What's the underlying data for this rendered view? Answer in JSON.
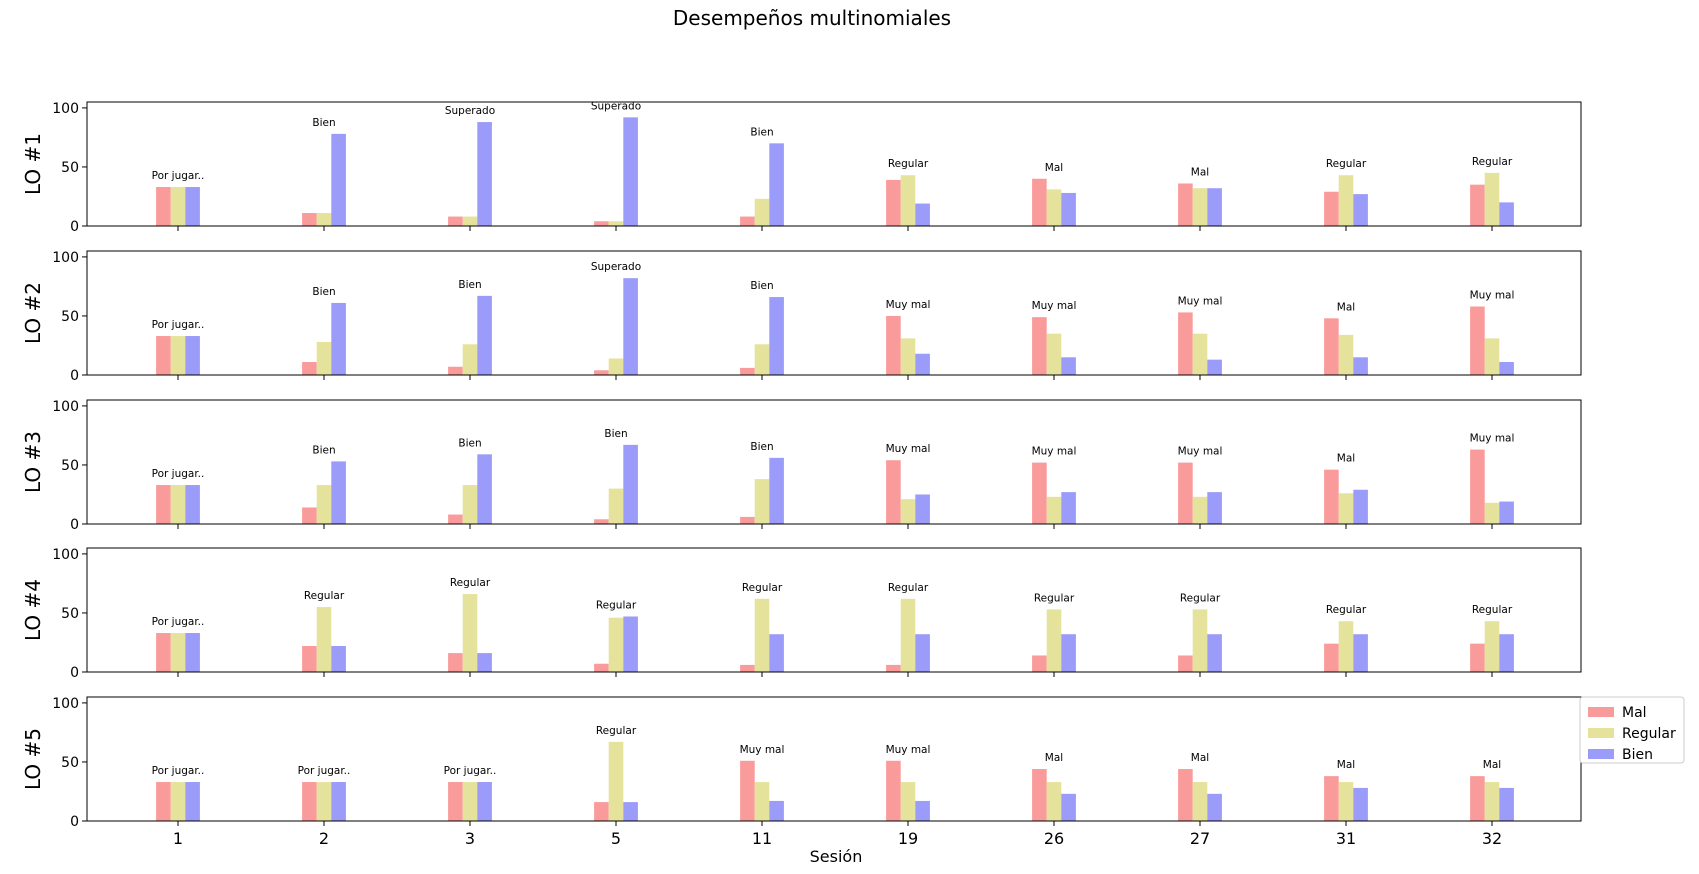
{
  "colors": {
    "Mal": "#f99b9b",
    "Regular": "#e5e39b",
    "Bien": "#9b9bf9"
  },
  "chart_data": {
    "type": "bar",
    "title": "Desempeños multinomiales",
    "xlabel": "Sesión",
    "categories": [
      "1",
      "2",
      "3",
      "5",
      "11",
      "19",
      "26",
      "27",
      "31",
      "32"
    ],
    "ylim": [
      0,
      105
    ],
    "yticks": [
      0,
      50,
      100
    ],
    "legend": {
      "placement": "right",
      "entries": [
        "Mal",
        "Regular",
        "Bien"
      ]
    },
    "grid": false,
    "subplots": [
      {
        "ylabel": "LO #1",
        "annotations": [
          "Por jugar..",
          "Bien",
          "Superado",
          "Superado",
          "Bien",
          "Regular",
          "Mal",
          "Mal",
          "Regular",
          "Regular"
        ],
        "series": [
          {
            "name": "Mal",
            "values": [
              33,
              11,
              8,
              4,
              8,
              39,
              40,
              36,
              29,
              35
            ]
          },
          {
            "name": "Regular",
            "values": [
              33,
              11,
              8,
              4,
              23,
              43,
              31,
              32,
              43,
              45
            ]
          },
          {
            "name": "Bien",
            "values": [
              33,
              78,
              88,
              92,
              70,
              19,
              28,
              32,
              27,
              20
            ]
          }
        ]
      },
      {
        "ylabel": "LO #2",
        "annotations": [
          "Por jugar..",
          "Bien",
          "Bien",
          "Superado",
          "Bien",
          "Muy mal",
          "Muy mal",
          "Muy mal",
          "Mal",
          "Muy mal"
        ],
        "series": [
          {
            "name": "Mal",
            "values": [
              33,
              11,
              7,
              4,
              6,
              50,
              49,
              53,
              48,
              58
            ]
          },
          {
            "name": "Regular",
            "values": [
              33,
              28,
              26,
              14,
              26,
              31,
              35,
              35,
              34,
              31
            ]
          },
          {
            "name": "Bien",
            "values": [
              33,
              61,
              67,
              82,
              66,
              18,
              15,
              13,
              15,
              11
            ]
          }
        ]
      },
      {
        "ylabel": "LO #3",
        "annotations": [
          "Por jugar..",
          "Bien",
          "Bien",
          "Bien",
          "Bien",
          "Muy mal",
          "Muy mal",
          "Muy mal",
          "Mal",
          "Muy mal"
        ],
        "series": [
          {
            "name": "Mal",
            "values": [
              33,
              14,
              8,
              4,
              6,
              54,
              52,
              52,
              46,
              63
            ]
          },
          {
            "name": "Regular",
            "values": [
              33,
              33,
              33,
              30,
              38,
              21,
              23,
              23,
              26,
              18
            ]
          },
          {
            "name": "Bien",
            "values": [
              33,
              53,
              59,
              67,
              56,
              25,
              27,
              27,
              29,
              19
            ]
          }
        ]
      },
      {
        "ylabel": "LO #4",
        "annotations": [
          "Por jugar..",
          "Regular",
          "Regular",
          "Regular",
          "Regular",
          "Regular",
          "Regular",
          "Regular",
          "Regular",
          "Regular"
        ],
        "series": [
          {
            "name": "Mal",
            "values": [
              33,
              22,
              16,
              7,
              6,
              6,
              14,
              14,
              24,
              24
            ]
          },
          {
            "name": "Regular",
            "values": [
              33,
              55,
              66,
              46,
              62,
              62,
              53,
              53,
              43,
              43
            ]
          },
          {
            "name": "Bien",
            "values": [
              33,
              22,
              16,
              47,
              32,
              32,
              32,
              32,
              32,
              32
            ]
          }
        ]
      },
      {
        "ylabel": "LO #5",
        "annotations": [
          "Por jugar..",
          "Por jugar..",
          "Por jugar..",
          "Regular",
          "Muy mal",
          "Muy mal",
          "Mal",
          "Mal",
          "Mal",
          "Mal"
        ],
        "series": [
          {
            "name": "Mal",
            "values": [
              33,
              33,
              33,
              16,
              51,
              51,
              44,
              44,
              38,
              38
            ]
          },
          {
            "name": "Regular",
            "values": [
              33,
              33,
              33,
              67,
              33,
              33,
              33,
              33,
              33,
              33
            ]
          },
          {
            "name": "Bien",
            "values": [
              33,
              33,
              33,
              16,
              17,
              17,
              23,
              23,
              28,
              28
            ]
          }
        ]
      }
    ]
  }
}
